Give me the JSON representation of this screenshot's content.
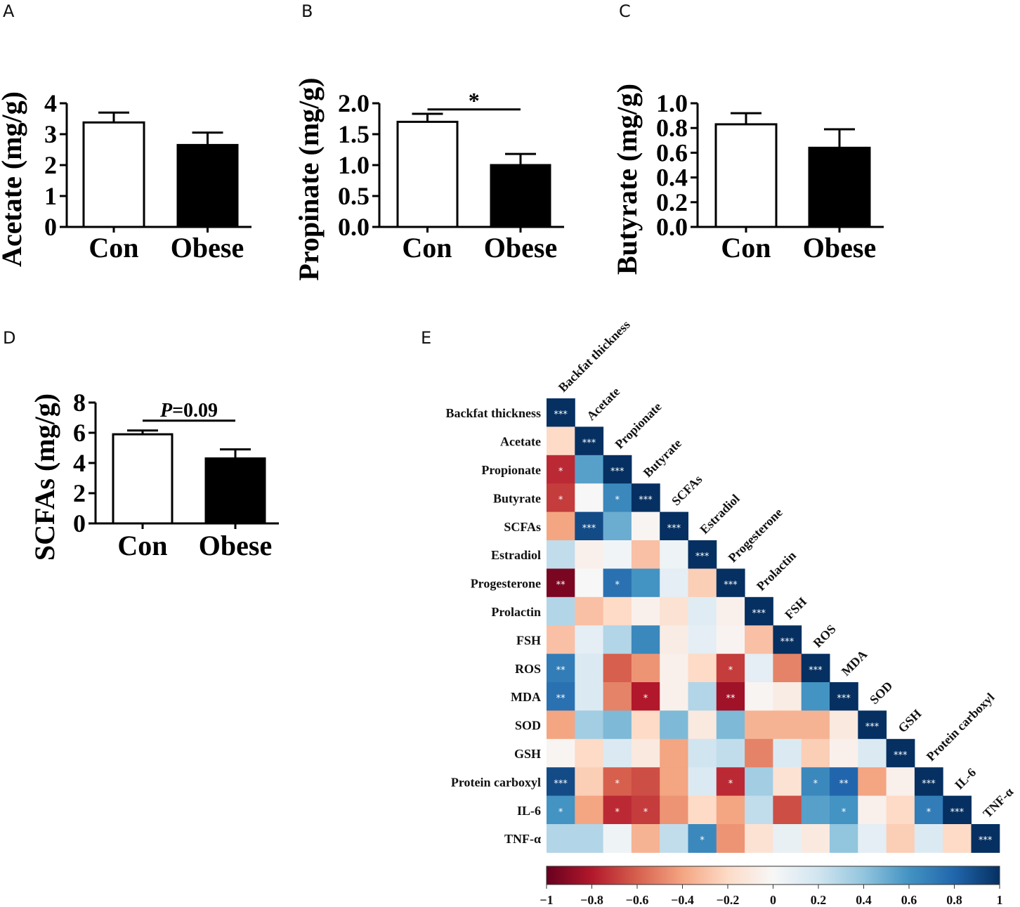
{
  "chart_data": [
    {
      "panel": "A",
      "type": "bar",
      "ylabel": "Acetate (mg/g)",
      "categories": [
        "Con",
        "Obese"
      ],
      "values": [
        3.38,
        2.65
      ],
      "errors": [
        0.32,
        0.4
      ],
      "bar_colors": [
        "#ffffff",
        "#000000"
      ],
      "ylim": [
        0,
        4
      ],
      "yticks": [
        0,
        1,
        2,
        3,
        4
      ],
      "ytick_labels": [
        "0",
        "1",
        "2",
        "3",
        "4"
      ]
    },
    {
      "panel": "B",
      "type": "bar",
      "ylabel": "Propinate (mg/g)",
      "categories": [
        "Con",
        "Obese"
      ],
      "values": [
        1.7,
        1.0
      ],
      "errors": [
        0.13,
        0.18
      ],
      "bar_colors": [
        "#ffffff",
        "#000000"
      ],
      "ylim": [
        0,
        2.0
      ],
      "yticks": [
        0,
        0.5,
        1.0,
        1.5,
        2.0
      ],
      "ytick_labels": [
        "0.0",
        "0.5",
        "1.0",
        "1.5",
        "2.0"
      ],
      "significance": {
        "label": "*",
        "between": [
          0,
          1
        ],
        "y": 1.9
      }
    },
    {
      "panel": "C",
      "type": "bar",
      "ylabel": "Butyrate (mg/g)",
      "categories": [
        "Con",
        "Obese"
      ],
      "values": [
        0.83,
        0.64
      ],
      "errors": [
        0.09,
        0.15
      ],
      "bar_colors": [
        "#ffffff",
        "#000000"
      ],
      "ylim": [
        0,
        1.0
      ],
      "yticks": [
        0,
        0.2,
        0.4,
        0.6,
        0.8,
        1.0
      ],
      "ytick_labels": [
        "0.0",
        "0.2",
        "0.4",
        "0.6",
        "0.8",
        "1.0"
      ]
    },
    {
      "panel": "D",
      "type": "bar",
      "ylabel": "SCFAs (mg/g)",
      "categories": [
        "Con",
        "Obese"
      ],
      "values": [
        5.9,
        4.3
      ],
      "errors": [
        0.25,
        0.6
      ],
      "bar_colors": [
        "#ffffff",
        "#000000"
      ],
      "ylim": [
        0,
        8
      ],
      "yticks": [
        0,
        2,
        4,
        6,
        8
      ],
      "ytick_labels": [
        "0",
        "2",
        "4",
        "6",
        "8"
      ],
      "significance": {
        "label_italic": "P",
        "label_rest": "=0.09",
        "between": [
          0,
          1
        ],
        "y": 6.8
      }
    },
    {
      "panel": "E",
      "type": "heatmap",
      "variables": [
        "Backfat thickness",
        "Acetate",
        "Propionate",
        "Butyrate",
        "SCFAs",
        "Estradiol",
        "Progesterone",
        "Prolactin",
        "FSH",
        "ROS",
        "MDA",
        "SOD",
        "GSH",
        "Protein carboxyl",
        "IL-6",
        "TNF-α"
      ],
      "lower_triangle_r": [
        [
          1
        ],
        [
          -0.2,
          1
        ],
        [
          -0.75,
          0.55,
          1
        ],
        [
          -0.7,
          0.0,
          0.65,
          1
        ],
        [
          -0.4,
          0.9,
          0.5,
          -0.02,
          1
        ],
        [
          0.25,
          -0.05,
          0.03,
          -0.3,
          0.05,
          1
        ],
        [
          -0.95,
          0.0,
          0.75,
          0.6,
          0.1,
          -0.25,
          1
        ],
        [
          0.3,
          -0.3,
          -0.2,
          -0.05,
          -0.15,
          0.12,
          -0.05,
          1
        ],
        [
          -0.3,
          0.1,
          0.3,
          0.65,
          -0.08,
          0.1,
          -0.03,
          -0.3,
          1
        ],
        [
          0.7,
          0.15,
          -0.6,
          -0.45,
          -0.05,
          -0.2,
          -0.7,
          0.1,
          -0.5,
          1
        ],
        [
          0.75,
          0.15,
          -0.5,
          -0.8,
          -0.05,
          0.3,
          -0.85,
          -0.02,
          -0.08,
          0.6,
          1
        ],
        [
          -0.4,
          0.35,
          0.45,
          -0.2,
          0.45,
          -0.1,
          0.45,
          -0.35,
          -0.35,
          -0.35,
          -0.1,
          1
        ],
        [
          -0.02,
          -0.2,
          0.15,
          -0.1,
          -0.4,
          0.2,
          0.25,
          -0.5,
          0.15,
          -0.25,
          -0.05,
          0.15,
          1
        ],
        [
          0.9,
          -0.25,
          -0.6,
          -0.65,
          -0.4,
          0.15,
          -0.75,
          0.35,
          -0.15,
          0.65,
          0.8,
          -0.4,
          -0.05,
          1
        ],
        [
          0.6,
          -0.4,
          -0.75,
          -0.7,
          -0.45,
          -0.2,
          -0.4,
          0.25,
          -0.65,
          0.55,
          0.6,
          -0.05,
          -0.2,
          0.7,
          1
        ],
        [
          0.3,
          0.3,
          0.05,
          -0.35,
          0.25,
          0.65,
          -0.45,
          -0.15,
          0.08,
          -0.1,
          0.4,
          0.1,
          -0.25,
          0.15,
          -0.2,
          1
        ]
      ],
      "lower_triangle_stars": [
        [
          "***"
        ],
        [
          "",
          "***"
        ],
        [
          "*",
          "",
          "***"
        ],
        [
          "*",
          "",
          "*",
          "***"
        ],
        [
          "",
          "***",
          "",
          "",
          "***"
        ],
        [
          "",
          "",
          "",
          "",
          "",
          "***"
        ],
        [
          "**",
          "",
          "*",
          "",
          "",
          "",
          "***"
        ],
        [
          "",
          "",
          "",
          "",
          "",
          "",
          "",
          "***"
        ],
        [
          "",
          "",
          "",
          "",
          "",
          "",
          "",
          "",
          "***"
        ],
        [
          "**",
          "",
          "",
          "",
          "",
          "",
          "*",
          "",
          "",
          "***"
        ],
        [
          "**",
          "",
          "",
          "*",
          "",
          "",
          "**",
          "",
          "",
          "",
          "***"
        ],
        [
          "",
          "",
          "",
          "",
          "",
          "",
          "",
          "",
          "",
          "",
          "",
          "***"
        ],
        [
          "",
          "",
          "",
          "",
          "",
          "",
          "",
          "",
          "",
          "",
          "",
          "",
          "***"
        ],
        [
          "***",
          "",
          "*",
          "",
          "",
          "",
          "*",
          "",
          "",
          "*",
          "**",
          "",
          "",
          "***"
        ],
        [
          "*",
          "",
          "*",
          "*",
          "",
          "",
          "",
          "",
          "",
          "",
          "*",
          "",
          "",
          "*",
          "***"
        ],
        [
          "",
          "",
          "",
          "",
          "",
          "*",
          "",
          "",
          "",
          "",
          "",
          "",
          "",
          "",
          "",
          "***"
        ]
      ],
      "colorbar": {
        "range": [
          -1,
          1
        ],
        "ticks": [
          -1,
          -0.8,
          -0.6,
          -0.4,
          -0.2,
          0,
          0.2,
          0.4,
          0.6,
          0.8,
          1
        ],
        "tick_labels": [
          "−1",
          "−0.8",
          "−0.6",
          "−0.4",
          "−0.2",
          "0",
          "0.2",
          "0.4",
          "0.6",
          "0.8",
          "1"
        ],
        "colors": [
          "#67001f",
          "#b2182b",
          "#d6604d",
          "#f4a582",
          "#fddbc7",
          "#f7f7f7",
          "#d1e5f0",
          "#92c5de",
          "#4393c3",
          "#2166ac",
          "#053061"
        ]
      }
    }
  ]
}
